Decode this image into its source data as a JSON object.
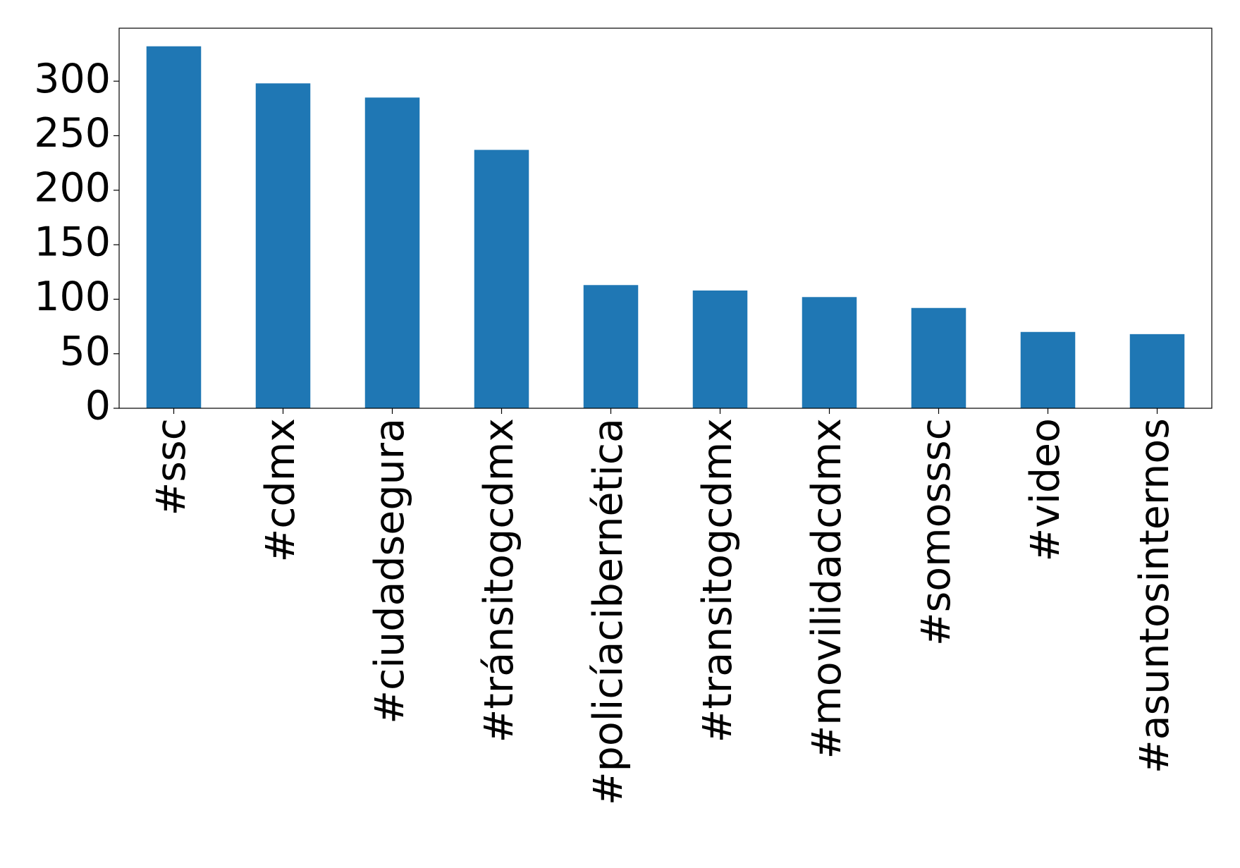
{
  "chart_data": {
    "type": "bar",
    "categories": [
      "#ssc",
      "#cdmx",
      "#ciudadsegura",
      "#tránsitogcdmx",
      "#policíacibernética",
      "#transitogcdmx",
      "#movilidadcdmx",
      "#somosssc",
      "#video",
      "#asuntosinternos"
    ],
    "values": [
      332,
      298,
      285,
      237,
      113,
      108,
      102,
      92,
      70,
      68
    ],
    "color": "#1f77b4",
    "ylim": [
      0,
      348.6
    ],
    "yticks": [
      0,
      50,
      100,
      150,
      200,
      250,
      300
    ],
    "grid": false
  }
}
